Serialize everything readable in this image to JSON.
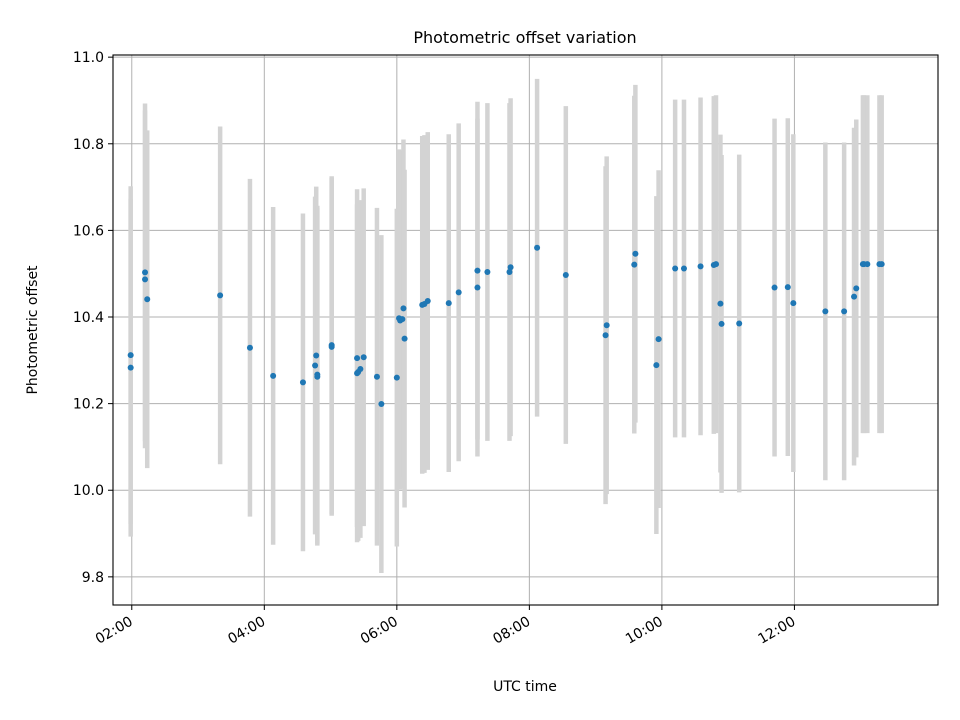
{
  "chart_data": {
    "type": "scatter",
    "title": "Photometric offset variation",
    "xlabel": "UTC time",
    "ylabel": "Photometric offset",
    "xlim": [
      "01:43",
      "14:10"
    ],
    "ylim": [
      9.735,
      11.005
    ],
    "grid": true,
    "x_ticks": [
      "02:00",
      "04:00",
      "06:00",
      "08:00",
      "10:00",
      "12:00"
    ],
    "y_ticks": [
      "9.8",
      "10.0",
      "10.2",
      "10.4",
      "10.6",
      "10.8",
      "11.0"
    ],
    "colors": {
      "points": "#1f77b4",
      "error_bars": "#d3d3d3",
      "grid": "#b0b0b0"
    },
    "error_bar_half_width": 0.39,
    "points": [
      {
        "t": "01:59",
        "y": 10.312
      },
      {
        "t": "01:59",
        "y": 10.283
      },
      {
        "t": "02:12",
        "y": 10.503
      },
      {
        "t": "02:12",
        "y": 10.487
      },
      {
        "t": "02:14",
        "y": 10.441
      },
      {
        "t": "03:20",
        "y": 10.45
      },
      {
        "t": "03:47",
        "y": 10.329
      },
      {
        "t": "04:08",
        "y": 10.264
      },
      {
        "t": "04:35",
        "y": 10.249
      },
      {
        "t": "04:46",
        "y": 10.288
      },
      {
        "t": "04:47",
        "y": 10.311
      },
      {
        "t": "04:48",
        "y": 10.267
      },
      {
        "t": "04:48",
        "y": 10.262
      },
      {
        "t": "05:01",
        "y": 10.335
      },
      {
        "t": "05:01",
        "y": 10.331
      },
      {
        "t": "05:24",
        "y": 10.305
      },
      {
        "t": "05:24",
        "y": 10.27
      },
      {
        "t": "05:25",
        "y": 10.273
      },
      {
        "t": "05:27",
        "y": 10.28
      },
      {
        "t": "05:30",
        "y": 10.307
      },
      {
        "t": "05:42",
        "y": 10.262
      },
      {
        "t": "05:46",
        "y": 10.199
      },
      {
        "t": "06:00",
        "y": 10.26
      },
      {
        "t": "06:02",
        "y": 10.397
      },
      {
        "t": "06:03",
        "y": 10.392
      },
      {
        "t": "06:05",
        "y": 10.395
      },
      {
        "t": "06:06",
        "y": 10.42
      },
      {
        "t": "06:07",
        "y": 10.35
      },
      {
        "t": "06:23",
        "y": 10.428
      },
      {
        "t": "06:25",
        "y": 10.43
      },
      {
        "t": "06:28",
        "y": 10.437
      },
      {
        "t": "06:47",
        "y": 10.432
      },
      {
        "t": "06:56",
        "y": 10.457
      },
      {
        "t": "07:13",
        "y": 10.507
      },
      {
        "t": "07:13",
        "y": 10.468
      },
      {
        "t": "07:22",
        "y": 10.504
      },
      {
        "t": "07:42",
        "y": 10.504
      },
      {
        "t": "07:43",
        "y": 10.515
      },
      {
        "t": "08:07",
        "y": 10.56
      },
      {
        "t": "08:33",
        "y": 10.497
      },
      {
        "t": "09:09",
        "y": 10.358
      },
      {
        "t": "09:10",
        "y": 10.381
      },
      {
        "t": "09:35",
        "y": 10.521
      },
      {
        "t": "09:36",
        "y": 10.546
      },
      {
        "t": "09:55",
        "y": 10.289
      },
      {
        "t": "09:57",
        "y": 10.349
      },
      {
        "t": "10:12",
        "y": 10.512
      },
      {
        "t": "10:20",
        "y": 10.512
      },
      {
        "t": "10:35",
        "y": 10.517
      },
      {
        "t": "10:47",
        "y": 10.52
      },
      {
        "t": "10:49",
        "y": 10.522
      },
      {
        "t": "10:53",
        "y": 10.431
      },
      {
        "t": "10:54",
        "y": 10.384
      },
      {
        "t": "11:10",
        "y": 10.385
      },
      {
        "t": "11:42",
        "y": 10.468
      },
      {
        "t": "11:54",
        "y": 10.469
      },
      {
        "t": "11:59",
        "y": 10.432
      },
      {
        "t": "12:28",
        "y": 10.413
      },
      {
        "t": "12:45",
        "y": 10.413
      },
      {
        "t": "12:54",
        "y": 10.447
      },
      {
        "t": "12:56",
        "y": 10.466
      },
      {
        "t": "13:02",
        "y": 10.522
      },
      {
        "t": "13:03",
        "y": 10.522
      },
      {
        "t": "13:06",
        "y": 10.522
      },
      {
        "t": "13:17",
        "y": 10.522
      },
      {
        "t": "13:19",
        "y": 10.522
      }
    ]
  }
}
